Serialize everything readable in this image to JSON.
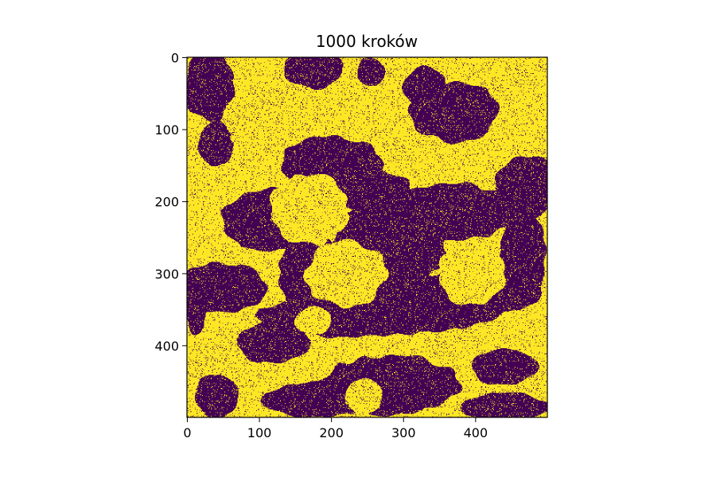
{
  "chart_data": {
    "type": "heatmap",
    "title": "1000 kroków",
    "xlabel": "",
    "ylabel": "",
    "grid_size": 500,
    "xlim": [
      0,
      499
    ],
    "ylim": [
      499,
      0
    ],
    "x_ticks": [
      0,
      100,
      200,
      300,
      400
    ],
    "y_ticks": [
      0,
      100,
      200,
      300,
      400
    ],
    "values": [
      -1,
      1
    ],
    "grid": false,
    "legend": "none",
    "colors": {
      "low": "#440154",
      "high": "#fde725"
    },
    "noise_fraction": 0.07,
    "domains": [
      {
        "value": -1,
        "ellipses": [
          [
            30,
            40,
            34,
            48
          ],
          [
            40,
            120,
            24,
            30
          ],
          [
            175,
            15,
            40,
            28
          ],
          [
            255,
            20,
            20,
            20
          ],
          [
            370,
            75,
            60,
            42
          ],
          [
            330,
            40,
            30,
            28
          ],
          [
            200,
            150,
            70,
            40
          ],
          [
            250,
            185,
            60,
            30
          ],
          [
            120,
            225,
            70,
            45
          ],
          [
            170,
            295,
            42,
            60
          ],
          [
            280,
            260,
            80,
            70
          ],
          [
            365,
            215,
            95,
            40
          ],
          [
            470,
            180,
            42,
            45
          ],
          [
            465,
            280,
            32,
            70
          ],
          [
            330,
            340,
            120,
            40
          ],
          [
            230,
            360,
            130,
            28
          ],
          [
            120,
            395,
            50,
            30
          ],
          [
            50,
            320,
            62,
            35
          ],
          [
            12,
            345,
            14,
            40
          ],
          [
            280,
            455,
            95,
            42
          ],
          [
            180,
            475,
            75,
            25
          ],
          [
            440,
            430,
            45,
            25
          ],
          [
            40,
            470,
            30,
            30
          ],
          [
            440,
            485,
            60,
            20
          ]
        ]
      },
      {
        "value": 1,
        "ellipses": [
          [
            170,
            210,
            55,
            50
          ],
          [
            220,
            300,
            55,
            45
          ],
          [
            175,
            365,
            25,
            20
          ],
          [
            145,
            95,
            30,
            20
          ],
          [
            245,
            470,
            25,
            25
          ],
          [
            395,
            300,
            45,
            45
          ],
          [
            80,
            110,
            20,
            12
          ],
          [
            440,
            120,
            15,
            15
          ],
          [
            90,
            10,
            22,
            16
          ],
          [
            485,
            60,
            12,
            40
          ]
        ]
      }
    ]
  }
}
